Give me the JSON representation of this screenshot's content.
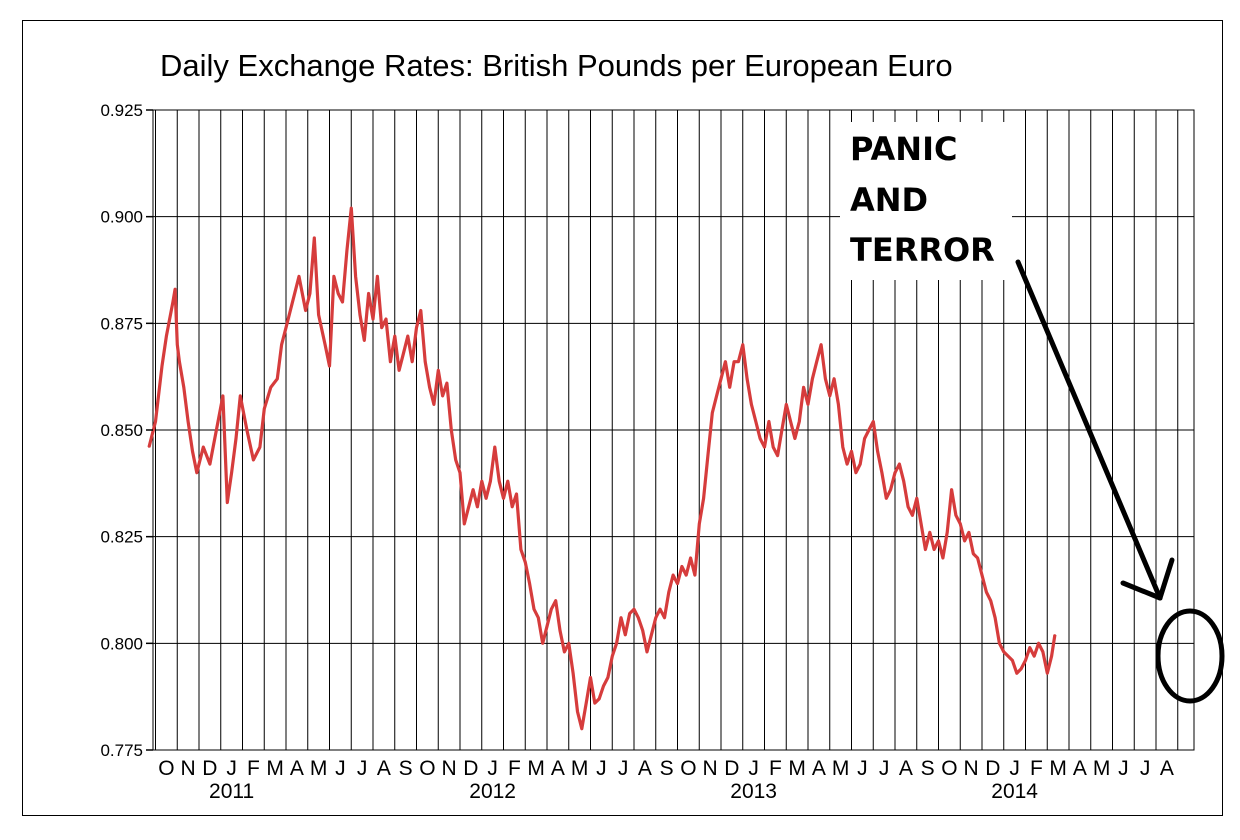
{
  "chart_data": {
    "type": "line",
    "title": "Daily Exchange Rates: British Pounds per European Euro",
    "xlabel": "",
    "ylabel": "",
    "ylim": [
      0.775,
      0.925
    ],
    "yticks": [
      "0.925",
      "0.900",
      "0.875",
      "0.850",
      "0.825",
      "0.800",
      "0.775"
    ],
    "grid": true,
    "month_labels": [
      "O",
      "N",
      "D",
      "J",
      "F",
      "M",
      "A",
      "M",
      "J",
      "J",
      "A",
      "S",
      "O",
      "N",
      "D",
      "J",
      "F",
      "M",
      "A",
      "M",
      "J",
      "J",
      "A",
      "S",
      "O",
      "N",
      "D",
      "J",
      "F",
      "M",
      "A",
      "M",
      "J",
      "J",
      "A",
      "S",
      "O",
      "N",
      "D",
      "J",
      "F",
      "M",
      "A",
      "M",
      "J",
      "J",
      "A"
    ],
    "year_labels": [
      {
        "label": "2011",
        "month_index": 3
      },
      {
        "label": "2012",
        "month_index": 15
      },
      {
        "label": "2013",
        "month_index": 27
      },
      {
        "label": "2014",
        "month_index": 39
      }
    ],
    "series": [
      {
        "color": "#d63c3c",
        "points": [
          [
            -0.3,
            0.846
          ],
          [
            0.0,
            0.852
          ],
          [
            0.3,
            0.865
          ],
          [
            0.5,
            0.872
          ],
          [
            0.8,
            0.88
          ],
          [
            0.9,
            0.883
          ],
          [
            1.0,
            0.87
          ],
          [
            1.1,
            0.866
          ],
          [
            1.3,
            0.86
          ],
          [
            1.5,
            0.852
          ],
          [
            1.7,
            0.845
          ],
          [
            1.9,
            0.84
          ],
          [
            2.2,
            0.846
          ],
          [
            2.5,
            0.842
          ],
          [
            2.8,
            0.85
          ],
          [
            3.1,
            0.858
          ],
          [
            3.3,
            0.833
          ],
          [
            3.5,
            0.84
          ],
          [
            3.7,
            0.848
          ],
          [
            3.9,
            0.858
          ],
          [
            4.2,
            0.85
          ],
          [
            4.5,
            0.843
          ],
          [
            4.8,
            0.846
          ],
          [
            5.0,
            0.855
          ],
          [
            5.3,
            0.86
          ],
          [
            5.6,
            0.862
          ],
          [
            5.8,
            0.87
          ],
          [
            6.0,
            0.874
          ],
          [
            6.3,
            0.88
          ],
          [
            6.6,
            0.886
          ],
          [
            6.9,
            0.878
          ],
          [
            7.1,
            0.882
          ],
          [
            7.3,
            0.895
          ],
          [
            7.5,
            0.877
          ],
          [
            7.8,
            0.87
          ],
          [
            8.0,
            0.865
          ],
          [
            8.2,
            0.886
          ],
          [
            8.4,
            0.882
          ],
          [
            8.6,
            0.88
          ],
          [
            8.8,
            0.892
          ],
          [
            9.0,
            0.902
          ],
          [
            9.2,
            0.886
          ],
          [
            9.4,
            0.877
          ],
          [
            9.6,
            0.871
          ],
          [
            9.8,
            0.882
          ],
          [
            10.0,
            0.876
          ],
          [
            10.2,
            0.886
          ],
          [
            10.4,
            0.874
          ],
          [
            10.6,
            0.876
          ],
          [
            10.8,
            0.866
          ],
          [
            11.0,
            0.872
          ],
          [
            11.2,
            0.864
          ],
          [
            11.4,
            0.868
          ],
          [
            11.6,
            0.872
          ],
          [
            11.8,
            0.866
          ],
          [
            12.0,
            0.874
          ],
          [
            12.2,
            0.878
          ],
          [
            12.4,
            0.866
          ],
          [
            12.6,
            0.86
          ],
          [
            12.8,
            0.856
          ],
          [
            13.0,
            0.864
          ],
          [
            13.2,
            0.858
          ],
          [
            13.4,
            0.861
          ],
          [
            13.6,
            0.85
          ],
          [
            13.8,
            0.843
          ],
          [
            14.0,
            0.84
          ],
          [
            14.2,
            0.828
          ],
          [
            14.4,
            0.832
          ],
          [
            14.6,
            0.836
          ],
          [
            14.8,
            0.832
          ],
          [
            15.0,
            0.838
          ],
          [
            15.2,
            0.834
          ],
          [
            15.4,
            0.838
          ],
          [
            15.6,
            0.846
          ],
          [
            15.8,
            0.838
          ],
          [
            16.0,
            0.834
          ],
          [
            16.2,
            0.838
          ],
          [
            16.4,
            0.832
          ],
          [
            16.6,
            0.835
          ],
          [
            16.8,
            0.822
          ],
          [
            17.0,
            0.819
          ],
          [
            17.2,
            0.814
          ],
          [
            17.4,
            0.808
          ],
          [
            17.6,
            0.806
          ],
          [
            17.8,
            0.8
          ],
          [
            18.0,
            0.804
          ],
          [
            18.2,
            0.808
          ],
          [
            18.4,
            0.81
          ],
          [
            18.6,
            0.803
          ],
          [
            18.8,
            0.798
          ],
          [
            19.0,
            0.8
          ],
          [
            19.2,
            0.793
          ],
          [
            19.4,
            0.784
          ],
          [
            19.6,
            0.78
          ],
          [
            19.8,
            0.786
          ],
          [
            20.0,
            0.792
          ],
          [
            20.2,
            0.786
          ],
          [
            20.4,
            0.787
          ],
          [
            20.6,
            0.79
          ],
          [
            20.8,
            0.792
          ],
          [
            21.0,
            0.797
          ],
          [
            21.2,
            0.8
          ],
          [
            21.4,
            0.806
          ],
          [
            21.6,
            0.802
          ],
          [
            21.8,
            0.807
          ],
          [
            22.0,
            0.808
          ],
          [
            22.2,
            0.806
          ],
          [
            22.4,
            0.803
          ],
          [
            22.6,
            0.798
          ],
          [
            22.8,
            0.802
          ],
          [
            23.0,
            0.806
          ],
          [
            23.2,
            0.808
          ],
          [
            23.4,
            0.806
          ],
          [
            23.6,
            0.812
          ],
          [
            23.8,
            0.816
          ],
          [
            24.0,
            0.814
          ],
          [
            24.2,
            0.818
          ],
          [
            24.4,
            0.816
          ],
          [
            24.6,
            0.82
          ],
          [
            24.8,
            0.816
          ],
          [
            25.0,
            0.828
          ],
          [
            25.2,
            0.834
          ],
          [
            25.4,
            0.844
          ],
          [
            25.6,
            0.854
          ],
          [
            25.8,
            0.858
          ],
          [
            26.0,
            0.862
          ],
          [
            26.2,
            0.866
          ],
          [
            26.4,
            0.86
          ],
          [
            26.6,
            0.866
          ],
          [
            26.8,
            0.866
          ],
          [
            27.0,
            0.87
          ],
          [
            27.2,
            0.862
          ],
          [
            27.4,
            0.856
          ],
          [
            27.6,
            0.852
          ],
          [
            27.8,
            0.848
          ],
          [
            28.0,
            0.846
          ],
          [
            28.2,
            0.852
          ],
          [
            28.4,
            0.846
          ],
          [
            28.6,
            0.844
          ],
          [
            28.8,
            0.85
          ],
          [
            29.0,
            0.856
          ],
          [
            29.2,
            0.852
          ],
          [
            29.4,
            0.848
          ],
          [
            29.6,
            0.852
          ],
          [
            29.8,
            0.86
          ],
          [
            30.0,
            0.856
          ],
          [
            30.2,
            0.862
          ],
          [
            30.4,
            0.866
          ],
          [
            30.6,
            0.87
          ],
          [
            30.8,
            0.862
          ],
          [
            31.0,
            0.858
          ],
          [
            31.2,
            0.862
          ],
          [
            31.4,
            0.856
          ],
          [
            31.6,
            0.846
          ],
          [
            31.8,
            0.842
          ],
          [
            32.0,
            0.845
          ],
          [
            32.2,
            0.84
          ],
          [
            32.4,
            0.842
          ],
          [
            32.6,
            0.848
          ],
          [
            32.8,
            0.85
          ],
          [
            33.0,
            0.852
          ],
          [
            33.2,
            0.845
          ],
          [
            33.4,
            0.84
          ],
          [
            33.6,
            0.834
          ],
          [
            33.8,
            0.836
          ],
          [
            34.0,
            0.84
          ],
          [
            34.2,
            0.842
          ],
          [
            34.4,
            0.838
          ],
          [
            34.6,
            0.832
          ],
          [
            34.8,
            0.83
          ],
          [
            35.0,
            0.834
          ],
          [
            35.2,
            0.828
          ],
          [
            35.4,
            0.822
          ],
          [
            35.6,
            0.826
          ],
          [
            35.8,
            0.822
          ],
          [
            36.0,
            0.824
          ],
          [
            36.2,
            0.82
          ],
          [
            36.4,
            0.826
          ],
          [
            36.6,
            0.836
          ],
          [
            36.8,
            0.83
          ],
          [
            37.0,
            0.828
          ],
          [
            37.2,
            0.824
          ],
          [
            37.4,
            0.826
          ],
          [
            37.6,
            0.821
          ],
          [
            37.8,
            0.82
          ],
          [
            38.0,
            0.816
          ],
          [
            38.2,
            0.812
          ],
          [
            38.4,
            0.81
          ],
          [
            38.6,
            0.806
          ],
          [
            38.8,
            0.8
          ],
          [
            39.0,
            0.798
          ],
          [
            39.2,
            0.797
          ],
          [
            39.4,
            0.796
          ],
          [
            39.6,
            0.793
          ],
          [
            39.8,
            0.794
          ],
          [
            40.0,
            0.796
          ],
          [
            40.2,
            0.799
          ],
          [
            40.4,
            0.797
          ],
          [
            40.6,
            0.8
          ],
          [
            40.8,
            0.798
          ],
          [
            41.0,
            0.793
          ],
          [
            41.2,
            0.797
          ],
          [
            41.35,
            0.802
          ]
        ]
      }
    ],
    "annotations": {
      "text_lines": [
        "PANIC",
        "AND",
        "TERROR"
      ],
      "arrow_color": "#000000"
    }
  }
}
